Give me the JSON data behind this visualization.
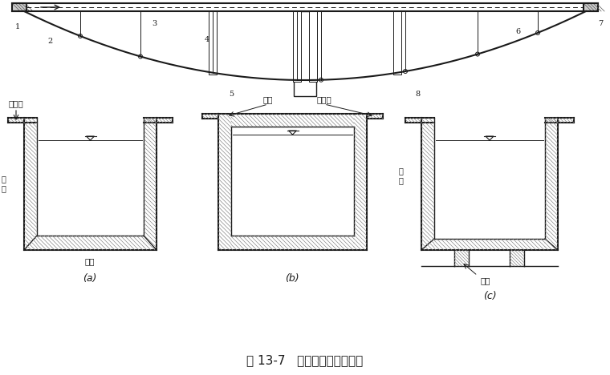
{
  "title": "图 13-7   矩形渡槽横断面型式",
  "label_a": "(a)",
  "label_b": "(b)",
  "label_c": "(c)",
  "text_renxingdao": "人行道",
  "text_hengguan": "横杆",
  "text_renxingdao2": "人行道",
  "text_ceqiang": "侧\n墙",
  "text_ceqiang2": "侧\n墙",
  "text_diban": "底板",
  "text_hengjin": "横肋",
  "bg_color": "#ffffff",
  "line_color": "#1a1a1a"
}
